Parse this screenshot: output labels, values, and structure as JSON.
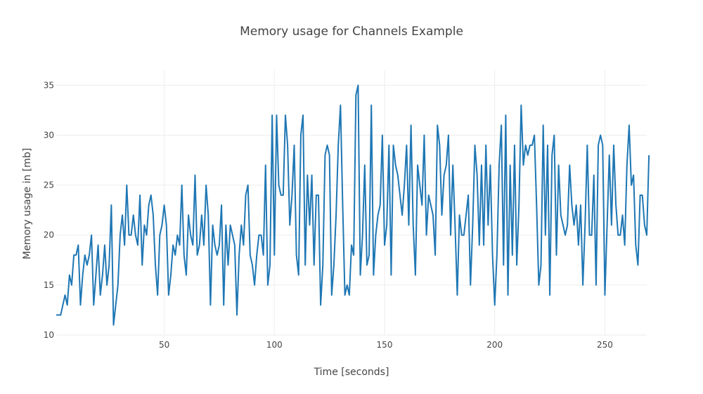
{
  "chart_data": {
    "type": "line",
    "title": "Memory usage for Channels Example",
    "xlabel": "Time [seconds]",
    "ylabel": "Memory usage in [mb]",
    "xlim": [
      1,
      269
    ],
    "ylim": [
      10,
      36.5
    ],
    "x_ticks": [
      50,
      100,
      150,
      200,
      250
    ],
    "y_ticks": [
      10,
      15,
      20,
      25,
      30,
      35
    ],
    "grid": true,
    "series": [
      {
        "name": "Memory usage",
        "color": "#1f77b4",
        "x_start": 1,
        "x_step": 1,
        "values": [
          12,
          12,
          12,
          13,
          14,
          13,
          16,
          15,
          18,
          18,
          19,
          13,
          16,
          18,
          17,
          18,
          20,
          13,
          16,
          19,
          14,
          16,
          19,
          15,
          17,
          23,
          11,
          13,
          15,
          20,
          22,
          19,
          25,
          20,
          20,
          22,
          20,
          19,
          24,
          17,
          21,
          20,
          23,
          24,
          22,
          17,
          14,
          20,
          21,
          23,
          21,
          14,
          16,
          19,
          18,
          20,
          19,
          25,
          18,
          16,
          22,
          20,
          19,
          26,
          18,
          19,
          22,
          19,
          25,
          22,
          13,
          21,
          19,
          18,
          19,
          23,
          13,
          21,
          17,
          21,
          20,
          19,
          12,
          18,
          21,
          19,
          24,
          25,
          18,
          17,
          15,
          18,
          20,
          20,
          18,
          27,
          15,
          17,
          32,
          18,
          32,
          25,
          24,
          24,
          32,
          29,
          21,
          24,
          29,
          18,
          16,
          30,
          32,
          17,
          26,
          21,
          26,
          17,
          24,
          24,
          13,
          17,
          28,
          29,
          28,
          14,
          17,
          22,
          29,
          33,
          23,
          14,
          15,
          14,
          19,
          18,
          34,
          35,
          16,
          20,
          27,
          17,
          18,
          33,
          16,
          20,
          22,
          23,
          30,
          19,
          21,
          29,
          16,
          29,
          27,
          26,
          24,
          22,
          25,
          29,
          21,
          31,
          21,
          16,
          27,
          25,
          23,
          30,
          20,
          24,
          23,
          22,
          18,
          31,
          29,
          22,
          26,
          27,
          30,
          20,
          27,
          21,
          14,
          22,
          20,
          20,
          22,
          24,
          15,
          21,
          29,
          26,
          19,
          27,
          19,
          29,
          21,
          27,
          18,
          13,
          18,
          27,
          31,
          17,
          32,
          14,
          27,
          18,
          29,
          17,
          23,
          33,
          27,
          29,
          28,
          29,
          29,
          30,
          23,
          15,
          17,
          31,
          20,
          29,
          14,
          28,
          30,
          18,
          27,
          22,
          21,
          20,
          21,
          27,
          23,
          21,
          23,
          19,
          23,
          15,
          21,
          29,
          20,
          20,
          26,
          15,
          29,
          30,
          29,
          14,
          21,
          28,
          21,
          29,
          23,
          20,
          20,
          22,
          19,
          27,
          31,
          25,
          26,
          19,
          17,
          24,
          24,
          21,
          20,
          28
        ]
      }
    ]
  }
}
